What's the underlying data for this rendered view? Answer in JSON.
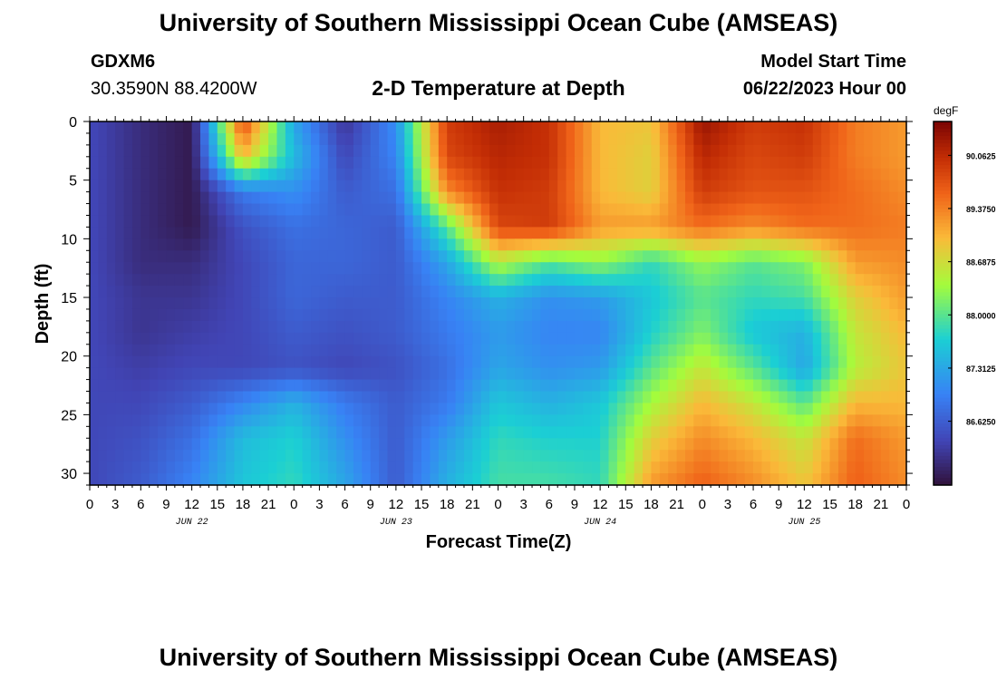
{
  "header": {
    "title": "University of Southern Mississippi Ocean Cube (AMSEAS)",
    "station_id": "GDXM6",
    "coordinates": "30.3590N  88.4200W",
    "plot_title": "2-D Temperature at Depth",
    "start_label": "Model Start Time",
    "start_value": "06/22/2023 Hour 00",
    "footer_title": "University of Southern Mississippi Ocean Cube (AMSEAS)"
  },
  "chart_data": {
    "type": "heatmap",
    "title": "2-D Temperature at Depth",
    "xlabel": "Forecast Time(Z)",
    "ylabel": "Depth (ft)",
    "colorbar_label": "degF",
    "colorbar_ticks": [
      "90.0625",
      "89.3750",
      "88.6875",
      "88.0000",
      "87.3125",
      "86.6250"
    ],
    "colorbar_values": [
      90.0625,
      89.375,
      88.6875,
      88.0,
      87.3125,
      86.625
    ],
    "color_range": [
      85.8,
      90.5
    ],
    "x_range_hours": [
      0,
      96
    ],
    "y_range_ft": [
      0,
      31
    ],
    "y_ticks": [
      "0",
      "5",
      "10",
      "15",
      "20",
      "25",
      "30"
    ],
    "y_tick_values": [
      0,
      5,
      10,
      15,
      20,
      25,
      30
    ],
    "x_tick_labels": [
      "0",
      "3",
      "6",
      "9",
      "12",
      "15",
      "18",
      "21",
      "0",
      "3",
      "6",
      "9",
      "12",
      "15",
      "18",
      "21",
      "0",
      "3",
      "6",
      "9",
      "12",
      "15",
      "18",
      "21",
      "0",
      "3",
      "6",
      "9",
      "12",
      "15",
      "18",
      "21",
      "0"
    ],
    "date_labels": [
      "JUN 22",
      "JUN 23",
      "JUN 24",
      "JUN 25"
    ],
    "date_label_hours": [
      12,
      36,
      60,
      84
    ],
    "depths_ft": [
      0,
      3,
      6,
      9,
      12,
      15,
      18,
      21,
      24,
      27,
      31
    ],
    "hours": [
      0,
      6,
      12,
      18,
      24,
      30,
      36,
      42,
      48,
      54,
      60,
      66,
      72,
      78,
      84,
      90,
      96
    ],
    "temperature_degF": [
      [
        86.4,
        86.1,
        85.9,
        89.8,
        87.3,
        86.2,
        87.1,
        89.9,
        90.2,
        90.0,
        89.0,
        88.9,
        90.3,
        89.9,
        90.0,
        89.4,
        89.2
      ],
      [
        86.4,
        86.1,
        85.9,
        89.0,
        87.5,
        86.4,
        87.0,
        89.8,
        90.1,
        90.0,
        89.0,
        88.8,
        90.1,
        89.8,
        89.9,
        89.4,
        89.2
      ],
      [
        86.4,
        86.1,
        85.9,
        86.9,
        87.1,
        86.6,
        86.8,
        89.3,
        90.0,
        89.9,
        89.0,
        88.8,
        89.9,
        89.7,
        89.7,
        89.5,
        89.3
      ],
      [
        86.4,
        86.1,
        85.9,
        86.5,
        86.8,
        86.7,
        86.6,
        88.0,
        89.8,
        89.9,
        89.2,
        89.2,
        89.5,
        89.3,
        89.5,
        89.5,
        89.4
      ],
      [
        86.4,
        86.1,
        86.1,
        86.4,
        86.7,
        86.7,
        86.6,
        87.3,
        88.5,
        88.0,
        88.3,
        87.8,
        88.3,
        88.0,
        88.2,
        89.2,
        89.3
      ],
      [
        86.4,
        86.2,
        86.2,
        86.4,
        86.7,
        86.6,
        86.6,
        87.0,
        87.4,
        87.1,
        87.2,
        87.6,
        88.0,
        87.8,
        87.9,
        88.8,
        89.2
      ],
      [
        86.4,
        86.2,
        86.3,
        86.4,
        86.6,
        86.5,
        86.6,
        86.9,
        87.2,
        87.0,
        87.0,
        87.7,
        88.2,
        87.6,
        87.4,
        88.6,
        89.0
      ],
      [
        86.4,
        86.3,
        86.4,
        86.4,
        86.5,
        86.4,
        86.5,
        86.8,
        87.3,
        87.1,
        87.2,
        88.0,
        88.6,
        88.0,
        87.3,
        88.5,
        88.9
      ],
      [
        86.4,
        86.4,
        86.6,
        87.0,
        87.4,
        86.9,
        86.6,
        86.9,
        87.6,
        87.4,
        87.6,
        88.4,
        89.0,
        88.6,
        88.0,
        89.0,
        89.0
      ],
      [
        86.4,
        86.5,
        86.8,
        87.5,
        87.7,
        87.1,
        86.6,
        87.2,
        87.8,
        87.7,
        87.7,
        88.8,
        89.3,
        89.0,
        88.6,
        89.5,
        89.2
      ],
      [
        86.4,
        86.6,
        87.0,
        87.6,
        87.8,
        87.3,
        86.6,
        87.4,
        87.9,
        87.9,
        87.8,
        89.2,
        89.6,
        89.3,
        88.9,
        89.6,
        89.3
      ]
    ]
  }
}
